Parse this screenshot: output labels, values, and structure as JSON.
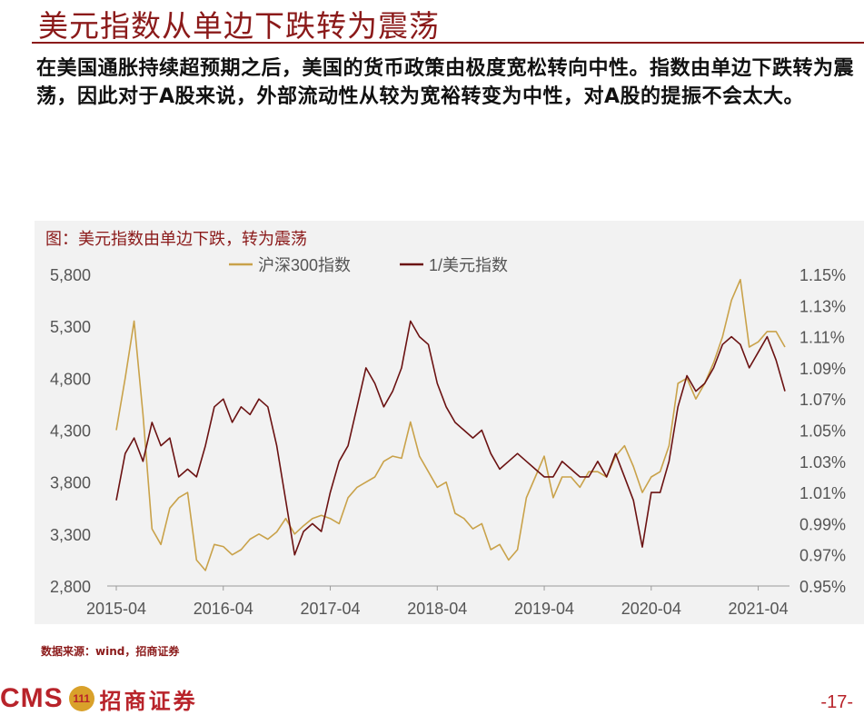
{
  "slide": {
    "title": "美元指数从单边下跌转为震荡",
    "paragraph": "在美国通胀持续超预期之后，美国的货币政策由极度宽松转向中性。指数由单边下跌转为震荡，因此对于A股来说，外部流动性从较为宽裕转变为中性，对A股的提振不会太大。",
    "source": "数据来源：wind，招商证券",
    "page_number": "-17-",
    "logo_text": "CMS",
    "logo_badge": "111",
    "logo_name": "招商证券"
  },
  "colors": {
    "brand": "#8b1a1a",
    "series1": "#c9a24a",
    "series2": "#6b1212",
    "axis_text": "#555555"
  },
  "chart_data": {
    "type": "line",
    "title": "图：美元指数由单边下跌，转为震荡",
    "x_ticks": [
      "2015-04",
      "2016-04",
      "2017-04",
      "2018-04",
      "2019-04",
      "2020-04",
      "2021-04"
    ],
    "x_range": [
      "2015-04",
      "2021-07"
    ],
    "y_left": {
      "ticks": [
        "2,800",
        "3,300",
        "3,800",
        "4,300",
        "4,800",
        "5,300",
        "5,800"
      ],
      "range": [
        2800,
        5800
      ]
    },
    "y_right": {
      "ticks": [
        "0.95%",
        "0.97%",
        "0.99%",
        "1.01%",
        "1.03%",
        "1.05%",
        "1.07%",
        "1.09%",
        "1.11%",
        "1.13%",
        "1.15%"
      ],
      "range": [
        0.95,
        1.15
      ]
    },
    "grid": false,
    "legend": "top",
    "series": [
      {
        "name": "沪深300指数",
        "axis": "left",
        "color": "#c9a24a",
        "points": [
          [
            "2015-04",
            4300
          ],
          [
            "2015-05",
            4800
          ],
          [
            "2015-06",
            5350
          ],
          [
            "2015-07",
            4450
          ],
          [
            "2015-08",
            3350
          ],
          [
            "2015-09",
            3200
          ],
          [
            "2015-10",
            3550
          ],
          [
            "2015-11",
            3650
          ],
          [
            "2015-12",
            3700
          ],
          [
            "2016-01",
            3050
          ],
          [
            "2016-02",
            2950
          ],
          [
            "2016-03",
            3200
          ],
          [
            "2016-04",
            3180
          ],
          [
            "2016-05",
            3100
          ],
          [
            "2016-06",
            3150
          ],
          [
            "2016-07",
            3250
          ],
          [
            "2016-08",
            3300
          ],
          [
            "2016-09",
            3250
          ],
          [
            "2016-10",
            3320
          ],
          [
            "2016-11",
            3450
          ],
          [
            "2016-12",
            3300
          ],
          [
            "2017-01",
            3380
          ],
          [
            "2017-02",
            3450
          ],
          [
            "2017-03",
            3480
          ],
          [
            "2017-04",
            3450
          ],
          [
            "2017-05",
            3400
          ],
          [
            "2017-06",
            3650
          ],
          [
            "2017-07",
            3750
          ],
          [
            "2017-08",
            3800
          ],
          [
            "2017-09",
            3850
          ],
          [
            "2017-10",
            4000
          ],
          [
            "2017-11",
            4050
          ],
          [
            "2017-12",
            4030
          ],
          [
            "2018-01",
            4380
          ],
          [
            "2018-02",
            4050
          ],
          [
            "2018-03",
            3900
          ],
          [
            "2018-04",
            3750
          ],
          [
            "2018-05",
            3800
          ],
          [
            "2018-06",
            3500
          ],
          [
            "2018-07",
            3450
          ],
          [
            "2018-08",
            3350
          ],
          [
            "2018-09",
            3400
          ],
          [
            "2018-10",
            3150
          ],
          [
            "2018-11",
            3200
          ],
          [
            "2018-12",
            3050
          ],
          [
            "2019-01",
            3150
          ],
          [
            "2019-02",
            3650
          ],
          [
            "2019-03",
            3850
          ],
          [
            "2019-04",
            4050
          ],
          [
            "2019-05",
            3650
          ],
          [
            "2019-06",
            3850
          ],
          [
            "2019-07",
            3850
          ],
          [
            "2019-08",
            3750
          ],
          [
            "2019-09",
            3900
          ],
          [
            "2019-10",
            3900
          ],
          [
            "2019-11",
            3850
          ],
          [
            "2019-12",
            4050
          ],
          [
            "2020-01",
            4150
          ],
          [
            "2020-02",
            3950
          ],
          [
            "2020-03",
            3700
          ],
          [
            "2020-04",
            3850
          ],
          [
            "2020-05",
            3900
          ],
          [
            "2020-06",
            4150
          ],
          [
            "2020-07",
            4750
          ],
          [
            "2020-08",
            4800
          ],
          [
            "2020-09",
            4600
          ],
          [
            "2020-10",
            4750
          ],
          [
            "2020-11",
            4950
          ],
          [
            "2020-12",
            5200
          ],
          [
            "2021-01",
            5550
          ],
          [
            "2021-02",
            5750
          ],
          [
            "2021-03",
            5100
          ],
          [
            "2021-04",
            5150
          ],
          [
            "2021-05",
            5250
          ],
          [
            "2021-06",
            5250
          ],
          [
            "2021-07",
            5100
          ]
        ]
      },
      {
        "name": "1/美元指数",
        "axis": "right",
        "color": "#6b1212",
        "points": [
          [
            "2015-04",
            1.005
          ],
          [
            "2015-05",
            1.035
          ],
          [
            "2015-06",
            1.045
          ],
          [
            "2015-07",
            1.03
          ],
          [
            "2015-08",
            1.055
          ],
          [
            "2015-09",
            1.04
          ],
          [
            "2015-10",
            1.045
          ],
          [
            "2015-11",
            1.02
          ],
          [
            "2015-12",
            1.025
          ],
          [
            "2016-01",
            1.02
          ],
          [
            "2016-02",
            1.04
          ],
          [
            "2016-03",
            1.065
          ],
          [
            "2016-04",
            1.07
          ],
          [
            "2016-05",
            1.055
          ],
          [
            "2016-06",
            1.065
          ],
          [
            "2016-07",
            1.06
          ],
          [
            "2016-08",
            1.07
          ],
          [
            "2016-09",
            1.065
          ],
          [
            "2016-10",
            1.04
          ],
          [
            "2016-11",
            1.005
          ],
          [
            "2016-12",
            0.97
          ],
          [
            "2017-01",
            0.985
          ],
          [
            "2017-02",
            0.99
          ],
          [
            "2017-03",
            0.985
          ],
          [
            "2017-04",
            1.01
          ],
          [
            "2017-05",
            1.03
          ],
          [
            "2017-06",
            1.04
          ],
          [
            "2017-07",
            1.065
          ],
          [
            "2017-08",
            1.09
          ],
          [
            "2017-09",
            1.08
          ],
          [
            "2017-10",
            1.065
          ],
          [
            "2017-11",
            1.075
          ],
          [
            "2017-12",
            1.09
          ],
          [
            "2018-01",
            1.12
          ],
          [
            "2018-02",
            1.11
          ],
          [
            "2018-03",
            1.105
          ],
          [
            "2018-04",
            1.08
          ],
          [
            "2018-05",
            1.065
          ],
          [
            "2018-06",
            1.055
          ],
          [
            "2018-07",
            1.05
          ],
          [
            "2018-08",
            1.045
          ],
          [
            "2018-09",
            1.05
          ],
          [
            "2018-10",
            1.035
          ],
          [
            "2018-11",
            1.025
          ],
          [
            "2018-12",
            1.03
          ],
          [
            "2019-01",
            1.035
          ],
          [
            "2019-02",
            1.03
          ],
          [
            "2019-03",
            1.025
          ],
          [
            "2019-04",
            1.02
          ],
          [
            "2019-05",
            1.02
          ],
          [
            "2019-06",
            1.03
          ],
          [
            "2019-07",
            1.025
          ],
          [
            "2019-08",
            1.02
          ],
          [
            "2019-09",
            1.02
          ],
          [
            "2019-10",
            1.03
          ],
          [
            "2019-11",
            1.02
          ],
          [
            "2019-12",
            1.035
          ],
          [
            "2020-01",
            1.02
          ],
          [
            "2020-02",
            1.005
          ],
          [
            "2020-03",
            0.975
          ],
          [
            "2020-04",
            1.01
          ],
          [
            "2020-05",
            1.01
          ],
          [
            "2020-06",
            1.03
          ],
          [
            "2020-07",
            1.065
          ],
          [
            "2020-08",
            1.085
          ],
          [
            "2020-09",
            1.075
          ],
          [
            "2020-10",
            1.08
          ],
          [
            "2020-11",
            1.09
          ],
          [
            "2020-12",
            1.105
          ],
          [
            "2021-01",
            1.11
          ],
          [
            "2021-02",
            1.105
          ],
          [
            "2021-03",
            1.09
          ],
          [
            "2021-04",
            1.1
          ],
          [
            "2021-05",
            1.11
          ],
          [
            "2021-06",
            1.095
          ],
          [
            "2021-07",
            1.075
          ]
        ]
      }
    ]
  }
}
